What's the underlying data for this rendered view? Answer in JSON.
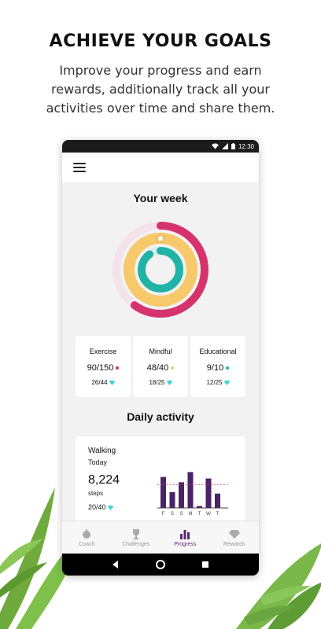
{
  "hero": {
    "title": "ACHIEVE YOUR GOALS",
    "subtitle": "Improve your progress and earn rewards, additionally track all your activities over time and share them."
  },
  "statusbar": {
    "time": "12:30",
    "icons": [
      "wifi-icon",
      "signal-icon",
      "battery-icon"
    ]
  },
  "appbar": {
    "menu_icon": "hamburger-menu-icon"
  },
  "week": {
    "title": "Your week",
    "rings": [
      {
        "name": "Exercise",
        "value": 90,
        "goal": 150,
        "color": "#d6336c",
        "track": "#f3e3ea"
      },
      {
        "name": "Mindful",
        "value": 48,
        "goal": 40,
        "color": "#f7c96a",
        "track": "#f7c96a"
      },
      {
        "name": "Educational",
        "value": 9,
        "goal": 10,
        "color": "#22b3a7",
        "track": "#d8efed"
      }
    ],
    "cards": [
      {
        "label": "Exercise",
        "main": "90/150",
        "sub": "26/44",
        "dot_color": "#d6336c"
      },
      {
        "label": "Mindful",
        "main": "48/40",
        "sub": "18/25",
        "dot_color": "#f7c96a"
      },
      {
        "label": "Educational",
        "main": "9/10",
        "sub": "12/25",
        "dot_color": "#22b3a7"
      }
    ],
    "gem_color": "#3ed6d6"
  },
  "daily": {
    "title": "Daily activity",
    "activity": "Walking",
    "period": "Today",
    "steps": "8,224",
    "unit": "steps",
    "goal": "20/40",
    "chart_data": {
      "type": "bar",
      "categories": [
        "F",
        "S",
        "S",
        "M",
        "T",
        "W",
        "T"
      ],
      "values": [
        0.82,
        0.42,
        0.68,
        0.95,
        0.05,
        0.78,
        0.38
      ],
      "target": 0.62,
      "color": "#4a2466"
    }
  },
  "nav": {
    "items": [
      {
        "label": "Coach",
        "icon": "stopwatch-icon",
        "active": false
      },
      {
        "label": "Challenges",
        "icon": "trophy-icon",
        "active": false
      },
      {
        "label": "Progress",
        "icon": "bar-chart-icon",
        "active": true
      },
      {
        "label": "Rewards",
        "icon": "diamond-icon",
        "active": false
      }
    ]
  },
  "system_nav": [
    "back-icon",
    "home-icon",
    "recents-icon"
  ]
}
